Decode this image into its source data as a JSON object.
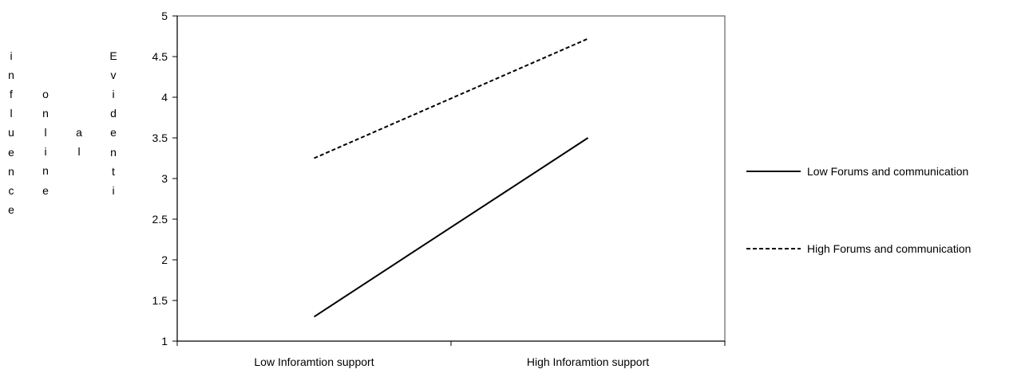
{
  "chart_data": {
    "type": "line",
    "categories": [
      "Low Inforamtion support",
      "High Inforamtion support"
    ],
    "series": [
      {
        "name": "Low Forums and communication",
        "values": [
          1.3,
          3.5
        ],
        "style": "solid",
        "color": "#000000"
      },
      {
        "name": "High Forums and communication",
        "values": [
          3.25,
          4.72
        ],
        "style": "dashed",
        "color": "#000000"
      }
    ],
    "yticks": [
      "1",
      "1.5",
      "2",
      "2.5",
      "3",
      "3.5",
      "4",
      "4.5",
      "5"
    ],
    "ylim": [
      1,
      5
    ],
    "ylabel_columns": [
      "influence",
      "online",
      "al",
      "Evidenti"
    ],
    "grid": false,
    "legend": "right",
    "plot_border_color": "#808080"
  }
}
